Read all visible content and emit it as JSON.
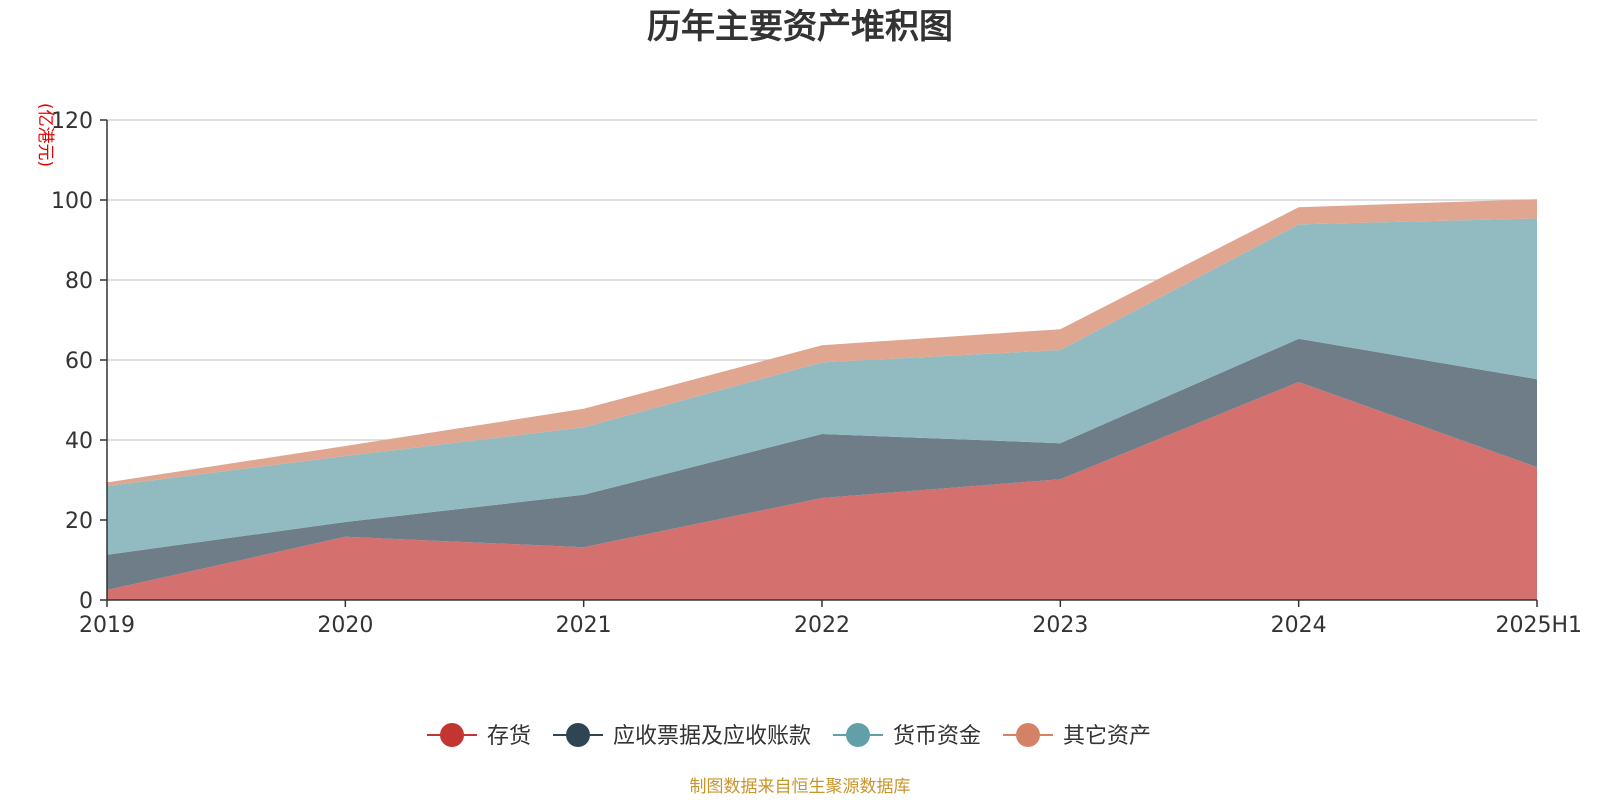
{
  "chart_data": {
    "type": "area",
    "stacked": true,
    "title": "历年主要资产堆积图",
    "ylabel": "(亿港元)",
    "xlabel": "",
    "categories": [
      "2019",
      "2020",
      "2021",
      "2022",
      "2023",
      "2024",
      "2025H1"
    ],
    "ylim": [
      0,
      120
    ],
    "yticks": [
      0,
      20,
      40,
      60,
      80,
      100,
      120
    ],
    "grid": true,
    "legend_position": "bottom-center",
    "series": [
      {
        "name": "存货",
        "color": "#c23531",
        "area_color": "#d4706d",
        "values": [
          2.5,
          15.8,
          13.2,
          25.5,
          30.2,
          54.5,
          33.2
        ]
      },
      {
        "name": "应收票据及应收账款",
        "color": "#2f4554",
        "area_color": "#6e7d88",
        "values": [
          8.8,
          3.7,
          13.1,
          16.0,
          9.0,
          10.8,
          22.0
        ]
      },
      {
        "name": "货币资金",
        "color": "#61a0a8",
        "area_color": "#92bbc1",
        "values": [
          17.2,
          16.5,
          16.9,
          17.9,
          23.3,
          28.6,
          40.2
        ]
      },
      {
        "name": "其它资产",
        "color": "#d48265",
        "area_color": "#e0a690",
        "values": [
          0.9,
          2.5,
          4.6,
          4.3,
          5.2,
          4.3,
          4.8
        ]
      }
    ],
    "source": "制图数据来自恒生聚源数据库"
  }
}
